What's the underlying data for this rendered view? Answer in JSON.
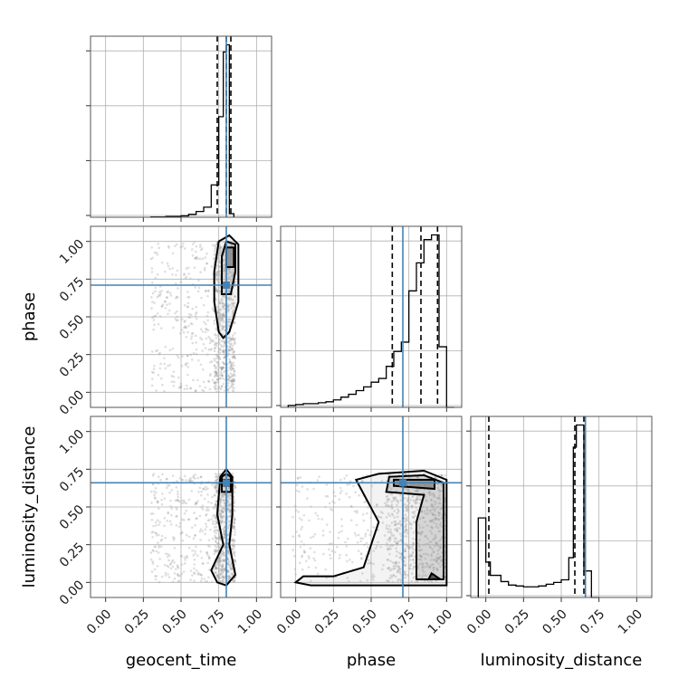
{
  "chart_data": {
    "type": "corner",
    "parameters": [
      "geocent_time",
      "phase",
      "luminosity_distance"
    ],
    "labels": {
      "geocent_time": "geocent_time",
      "phase": "phase",
      "luminosity_distance": "luminosity_distance"
    },
    "axis_range": [
      -0.1,
      1.1
    ],
    "ticks": [
      0.0,
      0.25,
      0.5,
      0.75,
      1.0
    ],
    "tick_labels": [
      "0.00",
      "0.25",
      "0.50",
      "0.75",
      "1.00"
    ],
    "grid": true,
    "truth_color": "#4682b4",
    "truths": {
      "geocent_time": 0.8,
      "phase": 0.71,
      "luminosity_distance": 0.66
    },
    "quantiles": {
      "geocent_time": [
        0.74,
        0.8,
        0.83
      ],
      "phase": [
        0.64,
        0.83,
        0.94
      ],
      "luminosity_distance": [
        0.02,
        0.59,
        0.65
      ]
    },
    "histograms": {
      "geocent_time": {
        "bin_edges": [
          0.3,
          0.35,
          0.4,
          0.45,
          0.5,
          0.55,
          0.6,
          0.65,
          0.7,
          0.75,
          0.78,
          0.8,
          0.82,
          0.85
        ],
        "counts": [
          0.5,
          0.5,
          1,
          1,
          2,
          4,
          8,
          14,
          45,
          140,
          230,
          240,
          5
        ]
      },
      "phase": {
        "bin_edges": [
          -0.05,
          0.0,
          0.05,
          0.1,
          0.15,
          0.2,
          0.25,
          0.3,
          0.35,
          0.4,
          0.45,
          0.5,
          0.55,
          0.6,
          0.65,
          0.7,
          0.75,
          0.8,
          0.85,
          0.9,
          0.95,
          1.0,
          1.05
        ],
        "counts": [
          2,
          3,
          4,
          4,
          5,
          6,
          8,
          11,
          14,
          18,
          22,
          27,
          31,
          44,
          60,
          70,
          125,
          155,
          180,
          185,
          65,
          0
        ]
      },
      "luminosity_distance": {
        "bin_edges": [
          -0.05,
          0.0,
          0.03,
          0.1,
          0.15,
          0.2,
          0.25,
          0.3,
          0.35,
          0.4,
          0.45,
          0.5,
          0.55,
          0.58,
          0.6,
          0.65,
          0.7,
          0.75
        ],
        "counts": [
          90,
          40,
          25,
          18,
          14,
          13,
          12,
          12,
          13,
          15,
          17,
          20,
          45,
          170,
          195,
          30,
          0
        ]
      }
    },
    "pair_panels": [
      {
        "x": "geocent_time",
        "y": "phase",
        "sample_cloud": {
          "x_range": [
            0.3,
            0.86
          ],
          "y_range": [
            0.0,
            1.0
          ],
          "dense_x": [
            0.72,
            0.86
          ]
        },
        "contours": [
          [
            [
              0.75,
              0.4
            ],
            [
              0.72,
              0.6
            ],
            [
              0.72,
              0.8
            ],
            [
              0.75,
              1.0
            ],
            [
              0.82,
              1.04
            ],
            [
              0.88,
              0.98
            ],
            [
              0.88,
              0.6
            ],
            [
              0.82,
              0.4
            ],
            [
              0.78,
              0.36
            ]
          ],
          [
            [
              0.77,
              0.65
            ],
            [
              0.77,
              0.9
            ],
            [
              0.8,
              1.0
            ],
            [
              0.86,
              0.98
            ],
            [
              0.86,
              0.8
            ],
            [
              0.83,
              0.65
            ]
          ],
          [
            [
              0.8,
              0.83
            ],
            [
              0.8,
              0.96
            ],
            [
              0.85,
              0.96
            ],
            [
              0.85,
              0.83
            ]
          ]
        ]
      },
      {
        "x": "geocent_time",
        "y": "luminosity_distance",
        "sample_cloud": {
          "x_range": [
            0.3,
            0.86
          ],
          "y_range": [
            0.0,
            0.72
          ],
          "dense_x": [
            0.72,
            0.86
          ]
        },
        "contours": [
          [
            [
              0.74,
              0.0
            ],
            [
              0.7,
              0.08
            ],
            [
              0.78,
              0.25
            ],
            [
              0.74,
              0.45
            ],
            [
              0.76,
              0.7
            ],
            [
              0.8,
              0.75
            ],
            [
              0.84,
              0.7
            ],
            [
              0.84,
              0.45
            ],
            [
              0.82,
              0.25
            ],
            [
              0.86,
              0.05
            ],
            [
              0.8,
              -0.02
            ]
          ],
          [
            [
              0.77,
              0.6
            ],
            [
              0.77,
              0.7
            ],
            [
              0.8,
              0.72
            ],
            [
              0.83,
              0.7
            ],
            [
              0.83,
              0.6
            ]
          ],
          [
            [
              0.78,
              0.64
            ],
            [
              0.78,
              0.68
            ],
            [
              0.82,
              0.68
            ],
            [
              0.82,
              0.64
            ]
          ]
        ]
      },
      {
        "x": "phase",
        "y": "luminosity_distance",
        "sample_cloud": {
          "x_range": [
            -0.02,
            1.0
          ],
          "y_range": [
            0.0,
            0.72
          ],
          "dense_x": [
            0.6,
            1.0
          ]
        },
        "contours": [
          [
            [
              0.0,
              0.0
            ],
            [
              0.05,
              0.04
            ],
            [
              0.25,
              0.04
            ],
            [
              0.45,
              0.1
            ],
            [
              0.55,
              0.4
            ],
            [
              0.4,
              0.68
            ],
            [
              0.55,
              0.72
            ],
            [
              0.85,
              0.74
            ],
            [
              1.0,
              0.68
            ],
            [
              1.0,
              -0.02
            ],
            [
              0.5,
              -0.02
            ],
            [
              0.1,
              -0.02
            ]
          ],
          [
            [
              0.6,
              0.6
            ],
            [
              0.62,
              0.7
            ],
            [
              0.85,
              0.71
            ],
            [
              0.98,
              0.66
            ],
            [
              0.98,
              0.02
            ],
            [
              0.8,
              0.02
            ],
            [
              0.8,
              0.4
            ],
            [
              0.85,
              0.58
            ]
          ],
          [
            [
              0.65,
              0.64
            ],
            [
              0.65,
              0.68
            ],
            [
              0.92,
              0.68
            ],
            [
              0.92,
              0.62
            ]
          ],
          [
            [
              0.88,
              0.02
            ],
            [
              0.9,
              0.06
            ],
            [
              0.96,
              0.02
            ]
          ]
        ]
      }
    ]
  }
}
